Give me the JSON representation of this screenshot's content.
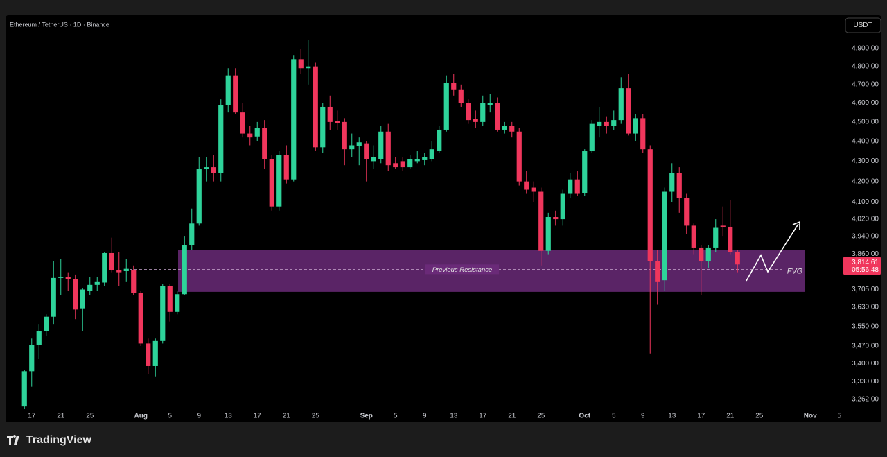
{
  "header": {
    "symbol": "Ethereum / TetherUS · 1D · Binance",
    "currency": "USDT"
  },
  "footer": {
    "brand": "TradingView"
  },
  "chart_data": {
    "type": "candlestick",
    "log_scale": true,
    "grid": false,
    "up_color": "#2ed39a",
    "down_color": "#f0365c",
    "categories": [
      null,
      "17",
      null,
      null,
      null,
      "21",
      null,
      null,
      null,
      "25",
      null,
      null,
      null,
      null,
      null,
      null,
      "Aug",
      null,
      null,
      null,
      "5",
      null,
      null,
      null,
      "9",
      null,
      null,
      null,
      "13",
      null,
      null,
      null,
      "17",
      null,
      null,
      null,
      "21",
      null,
      null,
      null,
      "25",
      null,
      null,
      null,
      null,
      null,
      null,
      "Sep",
      null,
      null,
      null,
      "5",
      null,
      null,
      null,
      "9",
      null,
      null,
      null,
      "13",
      null,
      null,
      null,
      "17",
      null,
      null,
      null,
      "21",
      null,
      null,
      null,
      "25",
      null,
      null,
      null,
      null,
      null,
      "Oct",
      null,
      null,
      null,
      "5",
      null,
      null,
      null,
      "9",
      null,
      null,
      null,
      "13",
      null,
      null,
      null,
      "17",
      null,
      null,
      null,
      "21",
      null,
      null,
      null,
      "25",
      null,
      null,
      null,
      null,
      null,
      null,
      "Nov",
      null,
      null,
      null,
      "5"
    ],
    "open": [
      3235,
      3370,
      3475,
      3530,
      3590,
      3755,
      3760,
      3750,
      3625,
      3700,
      3725,
      3735,
      3865,
      3790,
      3785,
      3790,
      3690,
      3480,
      3390,
      3490,
      3720,
      3610,
      3685,
      3900,
      4000,
      4260,
      4270,
      4240,
      4590,
      4750,
      4550,
      4440,
      4425,
      4470,
      4310,
      4080,
      4330,
      4210,
      4840,
      4790,
      4800,
      4370,
      4580,
      4505,
      4500,
      4360,
      4375,
      4390,
      4300,
      4310,
      4450,
      4290,
      4300,
      4270,
      4300,
      4305,
      4310,
      4350,
      4460,
      4710,
      4670,
      4600,
      4515,
      4500,
      4590,
      4600,
      4460,
      4480,
      4450,
      4200,
      4170,
      4150,
      3875,
      4030,
      4020,
      4140,
      4210,
      4145,
      4350,
      4480,
      4500,
      4480,
      4510,
      4680,
      4440,
      4520,
      4360,
      3830,
      3745,
      4150,
      4240,
      4120,
      3990,
      3890,
      3830,
      3890,
      3990,
      3985,
      3870,
      null,
      null,
      null,
      null,
      null,
      null,
      null,
      null,
      null,
      null,
      null,
      null,
      null,
      null
    ],
    "high": [
      3375,
      3500,
      3560,
      3600,
      3830,
      3840,
      3780,
      3770,
      3710,
      3760,
      3760,
      3870,
      3935,
      3870,
      3840,
      3810,
      3700,
      3500,
      3500,
      3730,
      3730,
      3700,
      3940,
      4070,
      4320,
      4320,
      4330,
      4620,
      4790,
      4790,
      4600,
      4480,
      4500,
      4510,
      4330,
      4350,
      4380,
      4860,
      4900,
      4950,
      4820,
      4600,
      4640,
      4560,
      4520,
      4440,
      4420,
      4400,
      4380,
      4480,
      4490,
      4320,
      4320,
      4330,
      4350,
      4340,
      4400,
      4480,
      4750,
      4760,
      4700,
      4620,
      4560,
      4640,
      4650,
      4630,
      4500,
      4500,
      4470,
      4250,
      4200,
      4170,
      4050,
      4060,
      4160,
      4240,
      4250,
      4360,
      4510,
      4580,
      4530,
      4560,
      4740,
      4760,
      4540,
      4540,
      4380,
      3880,
      4170,
      4290,
      4270,
      4140,
      4000,
      3900,
      3900,
      4020,
      4080,
      4110,
      3880,
      null,
      null,
      null,
      null,
      null,
      null,
      null,
      null,
      null,
      null,
      null,
      null,
      null,
      null
    ],
    "low": [
      3225,
      3310,
      3420,
      3510,
      3560,
      3680,
      3700,
      3580,
      3530,
      3680,
      3700,
      3720,
      3780,
      3720,
      3740,
      3680,
      3470,
      3360,
      3350,
      3480,
      3570,
      3600,
      3680,
      3880,
      3990,
      4200,
      4200,
      4200,
      4550,
      4540,
      4420,
      4380,
      4400,
      4260,
      4060,
      4060,
      4190,
      4200,
      4760,
      4700,
      4350,
      4340,
      4460,
      4460,
      4280,
      4320,
      4280,
      4200,
      4260,
      4290,
      4250,
      4260,
      4250,
      4260,
      4290,
      4280,
      4300,
      4340,
      4450,
      4640,
      4580,
      4490,
      4470,
      4480,
      4550,
      4450,
      4440,
      4420,
      4180,
      4140,
      4100,
      3810,
      3860,
      3990,
      3990,
      4120,
      4130,
      4130,
      4340,
      4420,
      4440,
      4460,
      4490,
      4430,
      4400,
      4340,
      3440,
      3640,
      3700,
      4100,
      4050,
      3950,
      3860,
      3680,
      3800,
      3870,
      3940,
      3860,
      3780,
      null,
      null,
      null,
      null,
      null,
      null,
      null,
      null,
      null,
      null,
      null,
      null,
      null,
      null
    ],
    "close": [
      3370,
      3475,
      3530,
      3590,
      3755,
      3760,
      3750,
      3620,
      3705,
      3725,
      3740,
      3865,
      3790,
      3780,
      3795,
      3690,
      3480,
      3390,
      3490,
      3720,
      3610,
      3685,
      3900,
      4000,
      4260,
      4270,
      4240,
      4590,
      4750,
      4550,
      4440,
      4420,
      4470,
      4310,
      4080,
      4330,
      4210,
      4840,
      4790,
      4800,
      4370,
      4580,
      4500,
      4495,
      4360,
      4380,
      4395,
      4310,
      4320,
      4450,
      4280,
      4270,
      4270,
      4310,
      4310,
      4320,
      4360,
      4460,
      4710,
      4670,
      4600,
      4510,
      4500,
      4600,
      4600,
      4460,
      4480,
      4450,
      4200,
      4160,
      4150,
      3875,
      4030,
      4020,
      4140,
      4210,
      4140,
      4350,
      4490,
      4500,
      4480,
      4510,
      4680,
      4440,
      4520,
      4360,
      3830,
      3740,
      4150,
      4240,
      4120,
      3990,
      3890,
      3830,
      3890,
      3980,
      3985,
      3870,
      3814.61,
      null,
      null,
      null,
      null,
      null,
      null,
      null,
      null,
      null,
      null,
      null,
      null,
      null,
      null
    ],
    "ylim": [
      3225,
      5093
    ],
    "yticks": [
      {
        "value": 4900,
        "label": "4,900.00"
      },
      {
        "value": 4800,
        "label": "4,800.00"
      },
      {
        "value": 4700,
        "label": "4,700.00"
      },
      {
        "value": 4600,
        "label": "4,600.00"
      },
      {
        "value": 4500,
        "label": "4,500.00"
      },
      {
        "value": 4400,
        "label": "4,400.00"
      },
      {
        "value": 4300,
        "label": "4,300.00"
      },
      {
        "value": 4200,
        "label": "4,200.00"
      },
      {
        "value": 4100,
        "label": "4,100.00"
      },
      {
        "value": 4020,
        "label": "4,020.00"
      },
      {
        "value": 3940,
        "label": "3,940.00"
      },
      {
        "value": 3860,
        "label": "3,860.00"
      },
      {
        "value": 3705,
        "label": "3,705.00"
      },
      {
        "value": 3630,
        "label": "3,630.00"
      },
      {
        "value": 3550,
        "label": "3,550.00"
      },
      {
        "value": 3470,
        "label": "3,470.00"
      },
      {
        "value": 3400,
        "label": "3,400.00"
      },
      {
        "value": 3330,
        "label": "3,330.00"
      },
      {
        "value": 3262,
        "label": "3,262.00"
      }
    ],
    "zone": {
      "label": "FVG",
      "low": 3695,
      "high": 3880,
      "color": "#6a2a78"
    },
    "level": {
      "label": "Previous Resistance",
      "value": 3793
    },
    "price_tag": {
      "value": 3814.61,
      "label": "3,814.61",
      "countdown": "05:56:48"
    }
  }
}
